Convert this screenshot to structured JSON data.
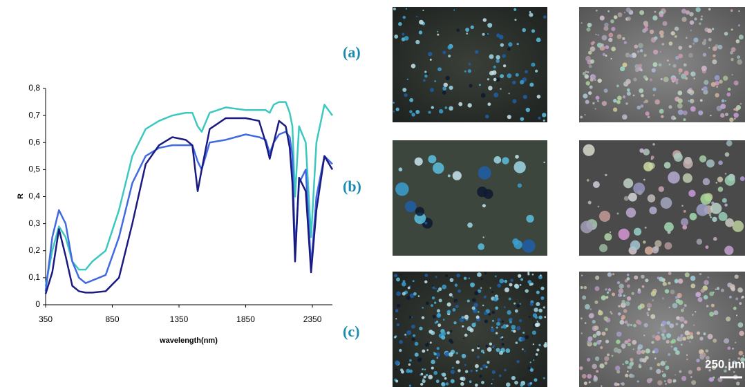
{
  "chart_data": {
    "type": "line",
    "x_label": "wavelength(nm)",
    "y_label": "R",
    "x": [
      350,
      400,
      450,
      500,
      550,
      600,
      650,
      700,
      800,
      900,
      1000,
      1100,
      1200,
      1300,
      1400,
      1450,
      1490,
      1520,
      1580,
      1700,
      1850,
      1950,
      2000,
      2030,
      2060,
      2100,
      2150,
      2180,
      2200,
      2220,
      2250,
      2300,
      2340,
      2380,
      2440,
      2500
    ],
    "series": [
      {
        "color": "#3cc8c0",
        "values": [
          0.07,
          0.2,
          0.29,
          0.25,
          0.16,
          0.13,
          0.13,
          0.16,
          0.2,
          0.35,
          0.55,
          0.65,
          0.68,
          0.7,
          0.71,
          0.71,
          0.66,
          0.64,
          0.71,
          0.73,
          0.72,
          0.72,
          0.72,
          0.71,
          0.74,
          0.75,
          0.75,
          0.71,
          0.66,
          0.4,
          0.66,
          0.6,
          0.25,
          0.6,
          0.74,
          0.7
        ]
      },
      {
        "color": "#4169e1",
        "values": [
          0.05,
          0.25,
          0.35,
          0.3,
          0.16,
          0.1,
          0.08,
          0.09,
          0.11,
          0.25,
          0.45,
          0.55,
          0.58,
          0.59,
          0.59,
          0.59,
          0.53,
          0.5,
          0.6,
          0.61,
          0.63,
          0.62,
          0.61,
          0.56,
          0.6,
          0.63,
          0.64,
          0.62,
          0.55,
          0.2,
          0.45,
          0.5,
          0.14,
          0.4,
          0.55,
          0.52
        ]
      },
      {
        "color": "#1a1a80",
        "values": [
          0.04,
          0.12,
          0.28,
          0.18,
          0.07,
          0.05,
          0.045,
          0.045,
          0.05,
          0.1,
          0.3,
          0.52,
          0.59,
          0.62,
          0.61,
          0.59,
          0.42,
          0.5,
          0.65,
          0.69,
          0.69,
          0.68,
          0.6,
          0.54,
          0.6,
          0.68,
          0.66,
          0.58,
          0.45,
          0.16,
          0.47,
          0.42,
          0.12,
          0.35,
          0.55,
          0.5
        ]
      }
    ],
    "xlim": [
      350,
      2500
    ],
    "xticks": [
      350,
      850,
      1350,
      1850,
      2350
    ],
    "ylim": [
      0,
      0.8
    ],
    "yticks": [
      0,
      {
        "value": 0.1,
        "label": "0,1"
      },
      {
        "value": 0.2,
        "label": "0,2"
      },
      {
        "value": 0.3,
        "label": "0,3"
      },
      {
        "value": 0.4,
        "label": "0,4"
      },
      {
        "value": 0.5,
        "label": "0,5"
      },
      {
        "value": 0.6,
        "label": "0,6"
      },
      {
        "value": 0.7,
        "label": "0,7"
      },
      {
        "value": 0.8,
        "label": "0,8"
      }
    ],
    "grid": false
  },
  "panels": {
    "labels": [
      "(a)",
      "(b)",
      "(c)"
    ],
    "scale_bar": "250 µm"
  }
}
